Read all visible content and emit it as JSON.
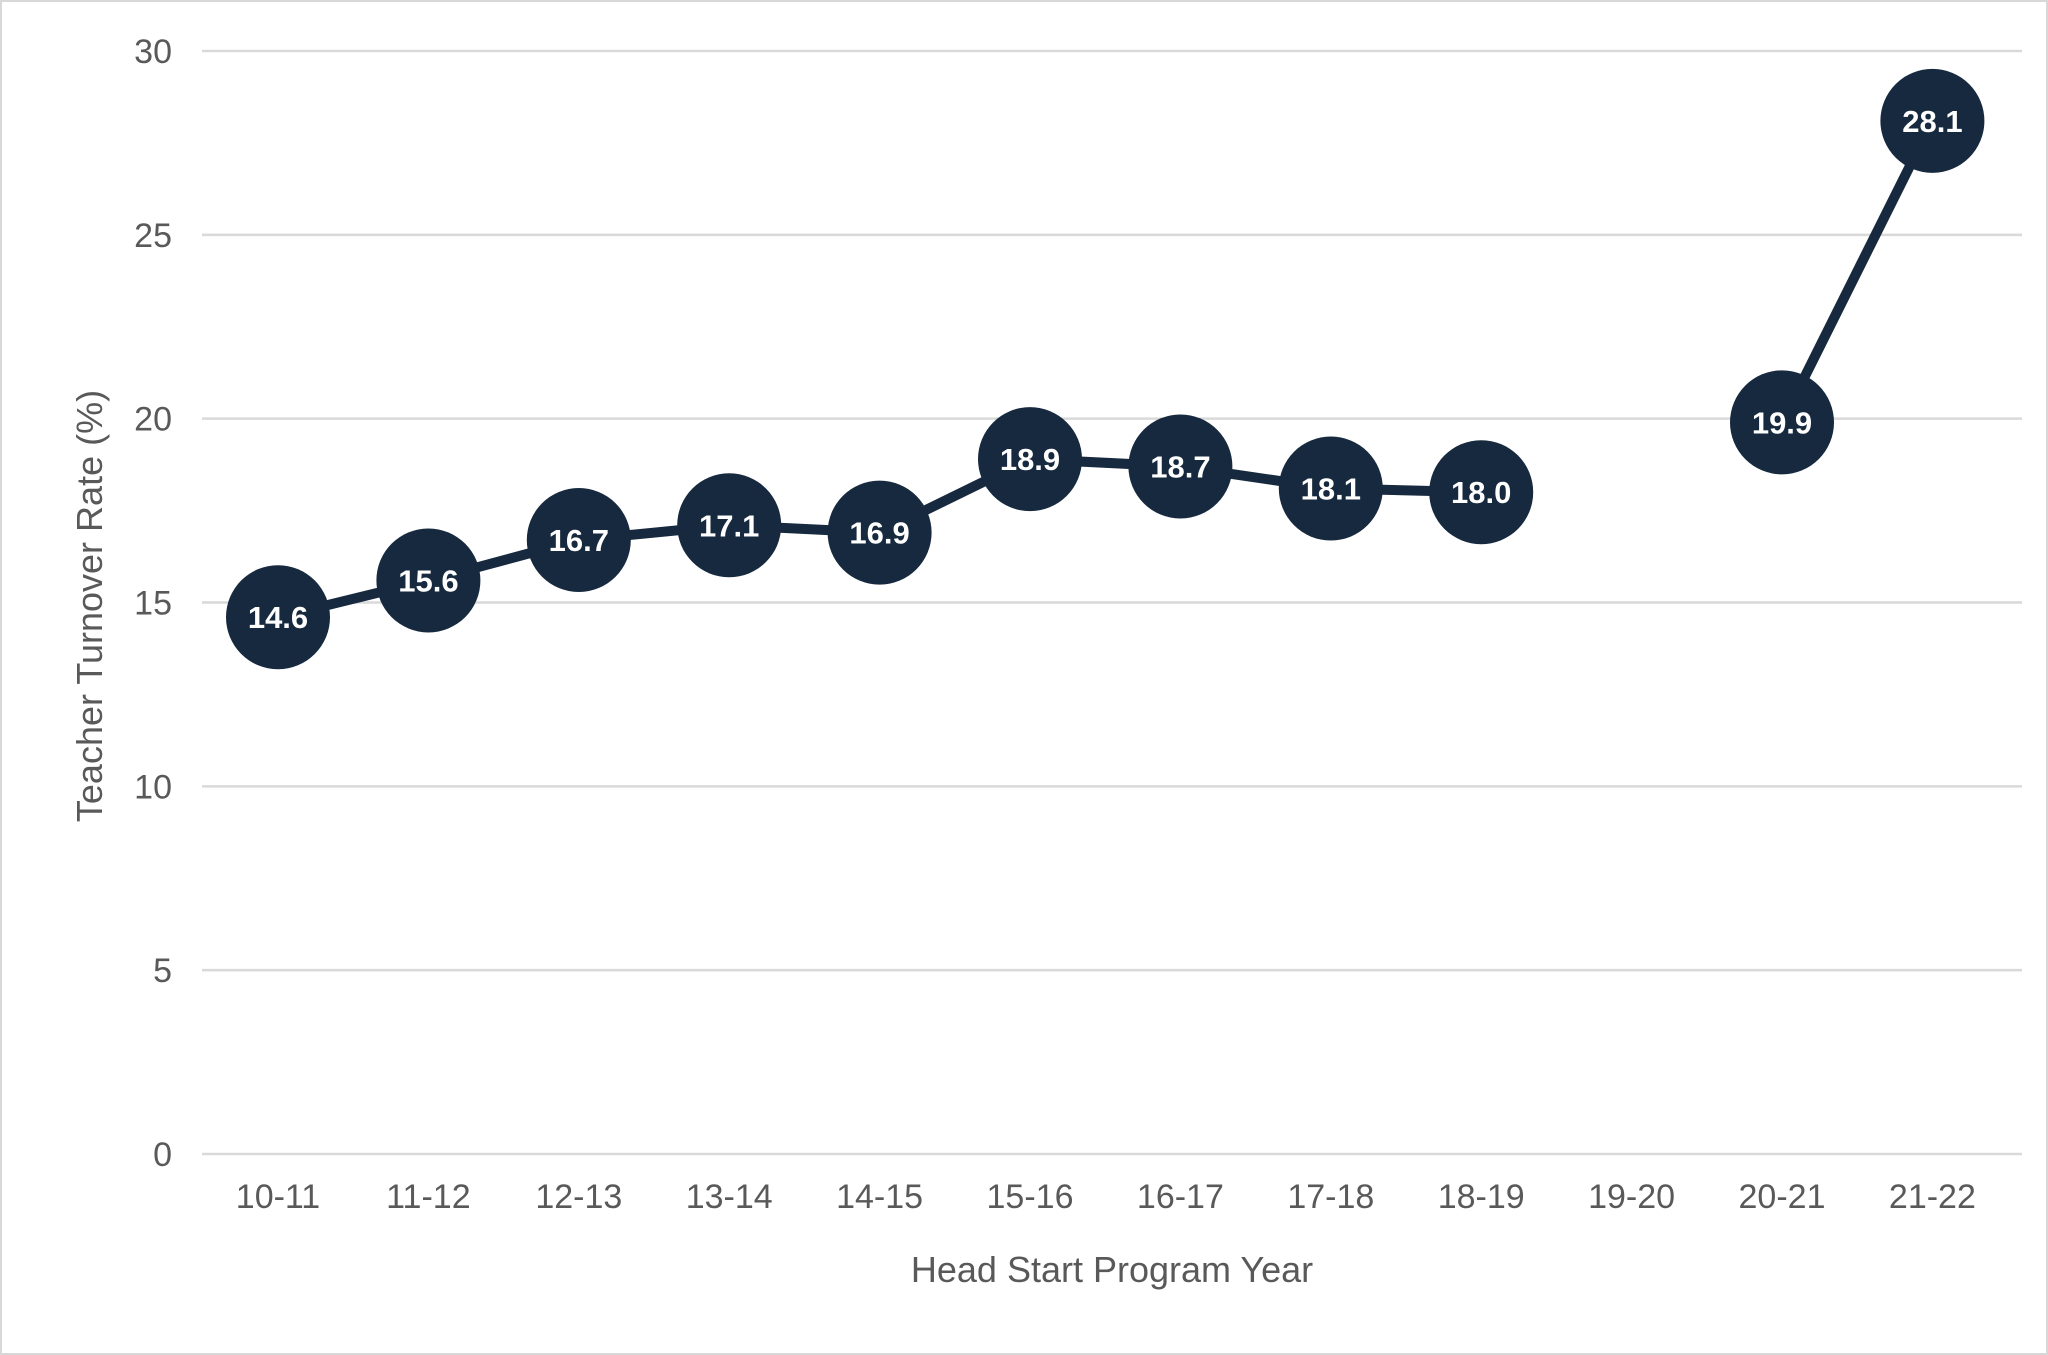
{
  "chart_data": {
    "type": "line",
    "title": "",
    "xlabel": "Head Start Program Year",
    "ylabel": "Teacher Turnover Rate (%)",
    "categories": [
      "10-11",
      "11-12",
      "12-13",
      "13-14",
      "14-15",
      "15-16",
      "16-17",
      "17-18",
      "18-19",
      "19-20",
      "20-21",
      "21-22"
    ],
    "values": [
      14.6,
      15.6,
      16.7,
      17.1,
      16.9,
      18.9,
      18.7,
      18.1,
      18.0,
      null,
      19.9,
      28.1
    ],
    "ylim": [
      0,
      30
    ],
    "yticks": [
      0,
      5,
      10,
      15,
      20,
      25,
      30
    ],
    "grid": true,
    "legend_position": "none",
    "gap_note": "no data point for 19-20; line is broken between 18-19 and 20-21",
    "colors": {
      "series": "#16293e",
      "data_label_text": "#ffffff",
      "gridline": "#d9d9d9",
      "tick_text": "#595959",
      "axis_title_text": "#595959",
      "background": "#ffffff",
      "frame_border": "#d8d8d8"
    }
  }
}
